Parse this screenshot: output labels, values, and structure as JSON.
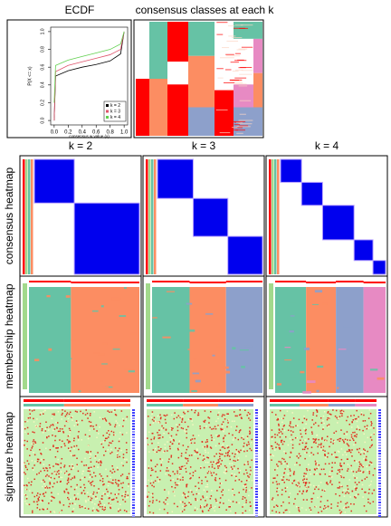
{
  "chart_data": {
    "type": "line",
    "title": "ECDF",
    "x_label": "consensus w value (x)",
    "y_label": "P(X <= x)",
    "x": [
      0,
      0.02,
      0.2,
      0.4,
      0.6,
      0.8,
      0.95,
      1.0
    ],
    "series": [
      {
        "name": "k = 2",
        "color": "#000000",
        "values": [
          0,
          0.5,
          0.56,
          0.6,
          0.63,
          0.67,
          0.75,
          1
        ]
      },
      {
        "name": "k = 3",
        "color": "#df536b",
        "values": [
          0,
          0.55,
          0.62,
          0.66,
          0.7,
          0.74,
          0.8,
          1
        ]
      },
      {
        "name": "k = 4",
        "color": "#61d04f",
        "values": [
          0.2,
          0.62,
          0.68,
          0.72,
          0.76,
          0.8,
          0.86,
          1
        ]
      }
    ],
    "xlim": [
      -0.05,
      1.05
    ],
    "ylim": [
      -0.05,
      1.05
    ],
    "xticks": [
      {
        "value": 0,
        "label": "0.0"
      },
      0.2,
      0.4,
      0.6,
      0.8,
      {
        "value": 1,
        "label": "1.0"
      }
    ],
    "yticks": [
      {
        "value": 0,
        "label": "0.0"
      },
      0.2,
      0.4,
      0.6,
      0.8,
      {
        "value": 1,
        "label": "1.0"
      }
    ],
    "legend": "bottom-right"
  },
  "classes_title": "consensus classes at each k",
  "columns": [
    "k = 2",
    "k = 3",
    "k = 4"
  ],
  "rows": [
    "consensus heatmap",
    "membership heatmap",
    "signature heatmap"
  ]
}
